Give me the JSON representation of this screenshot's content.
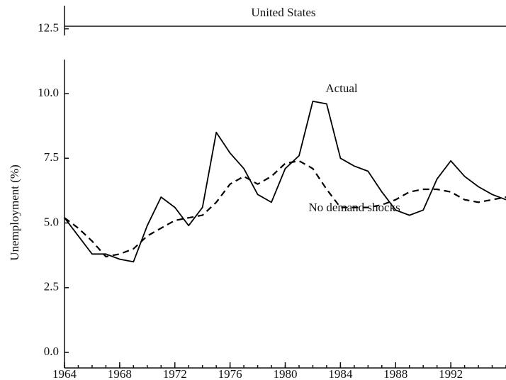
{
  "chart_data": {
    "type": "line",
    "title": "United States",
    "ylabel": "Unemployment (%)",
    "annotations": [
      "Actual",
      "No demand shocks"
    ],
    "x": [
      1964,
      1965,
      1966,
      1967,
      1968,
      1969,
      1970,
      1971,
      1972,
      1973,
      1974,
      1975,
      1976,
      1977,
      1978,
      1979,
      1980,
      1981,
      1982,
      1983,
      1984,
      1985,
      1986,
      1987,
      1988,
      1989,
      1990,
      1991,
      1992,
      1993,
      1994,
      1995,
      1996
    ],
    "series": [
      {
        "name": "Actual",
        "color": "#000000",
        "dash": false,
        "values": [
          5.2,
          4.5,
          3.8,
          3.8,
          3.6,
          3.5,
          4.9,
          6.0,
          5.6,
          4.9,
          5.6,
          8.5,
          7.7,
          7.1,
          6.1,
          5.8,
          7.1,
          7.6,
          9.7,
          9.6,
          7.5,
          7.2,
          7.0,
          6.2,
          5.5,
          5.3,
          5.5,
          6.7,
          7.4,
          6.8,
          6.4,
          6.1,
          5.9
        ]
      },
      {
        "name": "No demand shocks",
        "color": "#000000",
        "dash": true,
        "values": [
          5.2,
          4.8,
          4.3,
          3.7,
          3.8,
          4.0,
          4.5,
          4.8,
          5.1,
          5.2,
          5.3,
          5.8,
          6.5,
          6.8,
          6.5,
          6.8,
          7.3,
          7.4,
          7.1,
          6.3,
          5.6,
          5.6,
          5.6,
          5.7,
          5.9,
          6.2,
          6.3,
          6.3,
          6.2,
          5.9,
          5.8,
          5.9,
          6.0
        ]
      }
    ],
    "xlim": [
      1964,
      1996
    ],
    "xticks": [
      1964,
      1968,
      1972,
      1976,
      1980,
      1984,
      1988,
      1992
    ],
    "ylim": [
      -0.6,
      12.6
    ],
    "yticks": [
      {
        "value": 0,
        "label": "0.0"
      },
      {
        "value": 2.5,
        "label": "2.5"
      },
      {
        "value": 5,
        "label": "5.0"
      },
      {
        "value": 7.5,
        "label": "7.5"
      },
      {
        "value": 10,
        "label": "10.0"
      },
      {
        "value": 12.5,
        "label": "12.5"
      }
    ],
    "grid": false
  }
}
